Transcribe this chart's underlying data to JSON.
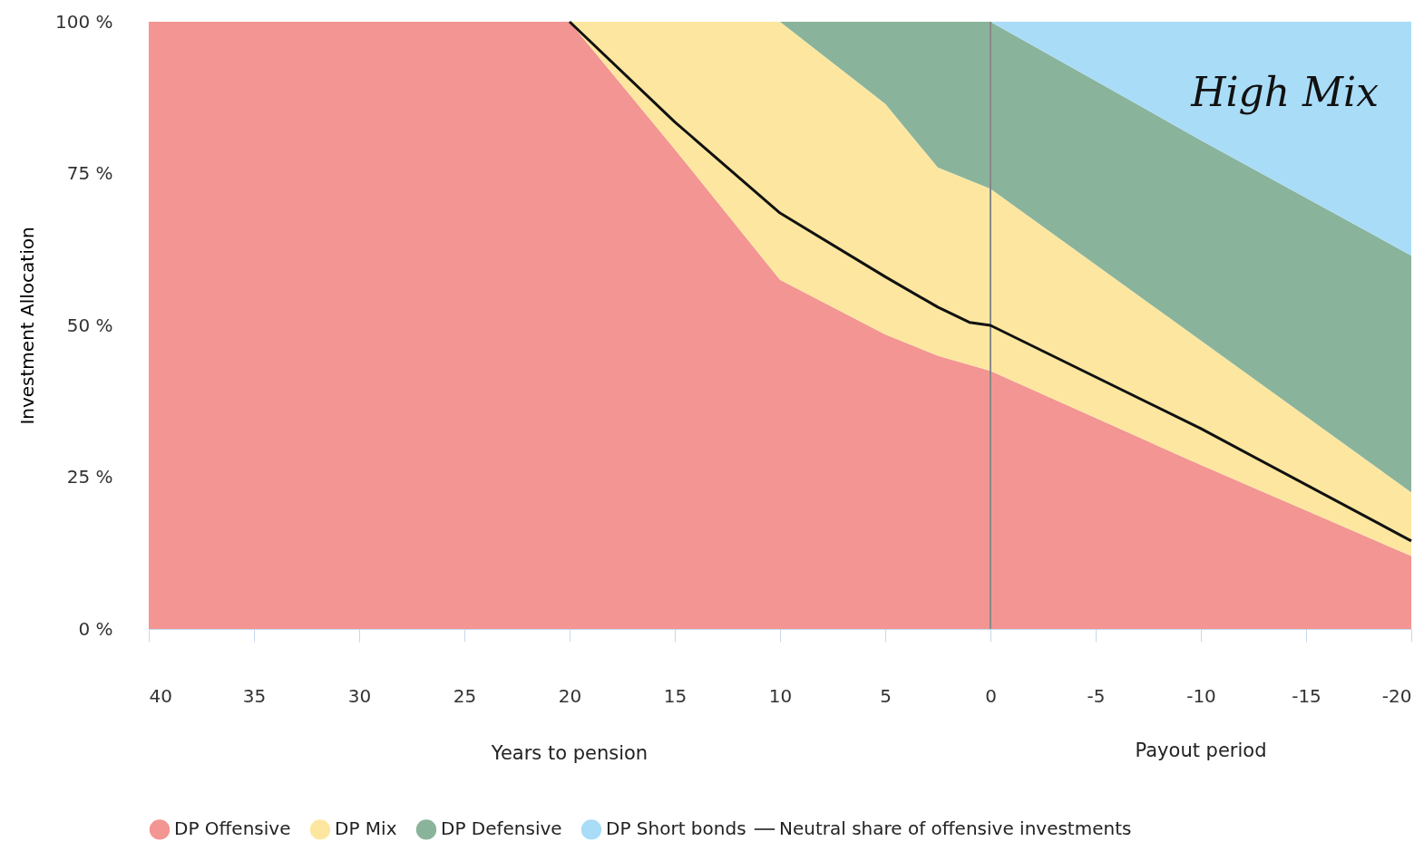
{
  "chart_data": {
    "type": "area",
    "stacked": true,
    "ylabel": "Investment Allocation",
    "xlabel": "Years to pension",
    "x": [
      40,
      20,
      15,
      10,
      5,
      2.5,
      0,
      -10,
      -20
    ],
    "series": [
      {
        "name": "DP Offensive",
        "color": "#f39593",
        "values": [
          100,
          100,
          79,
          57.5,
          48.5,
          45,
          42.5,
          27,
          12
        ]
      },
      {
        "name": "DP Mix",
        "color": "#fde7a0",
        "values": [
          0,
          0,
          21,
          42.5,
          38,
          31,
          30,
          20.5,
          10.5
        ]
      },
      {
        "name": "DP Defensive",
        "color": "#8ab39b",
        "values": [
          0,
          0,
          0,
          0,
          13.5,
          24,
          27.5,
          33,
          39
        ]
      },
      {
        "name": "DP Short bonds",
        "color": "#a9dcf7",
        "values": [
          0,
          0,
          0,
          0,
          0,
          0,
          0,
          19.5,
          38.5
        ]
      },
      {
        "name": "Neutral share of offensive investments",
        "type": "line",
        "color": "#111111",
        "x": [
          20,
          15,
          10,
          5,
          2.5,
          1,
          0,
          -10,
          -20
        ],
        "values": [
          100,
          83.5,
          68.5,
          58,
          53,
          50.5,
          50,
          33,
          14.5
        ]
      }
    ],
    "xlim": [
      40,
      -20
    ],
    "xticks": [
      40,
      35,
      30,
      25,
      20,
      15,
      10,
      5,
      0,
      -5,
      -10,
      -15,
      -20
    ],
    "ylim": [
      0,
      100
    ],
    "yticks": [
      {
        "value": 0,
        "label": "0 %"
      },
      {
        "value": 25,
        "label": "25 %"
      },
      {
        "value": 50,
        "label": "50 %"
      },
      {
        "value": 75,
        "label": "75 %"
      },
      {
        "value": 100,
        "label": "100 %"
      }
    ],
    "ref_lines": [
      {
        "axis": "x",
        "value": 0,
        "color": "#888888"
      }
    ],
    "annotations": [
      "High Mix",
      "Payout period"
    ],
    "grid": false,
    "legend": "bottom"
  }
}
